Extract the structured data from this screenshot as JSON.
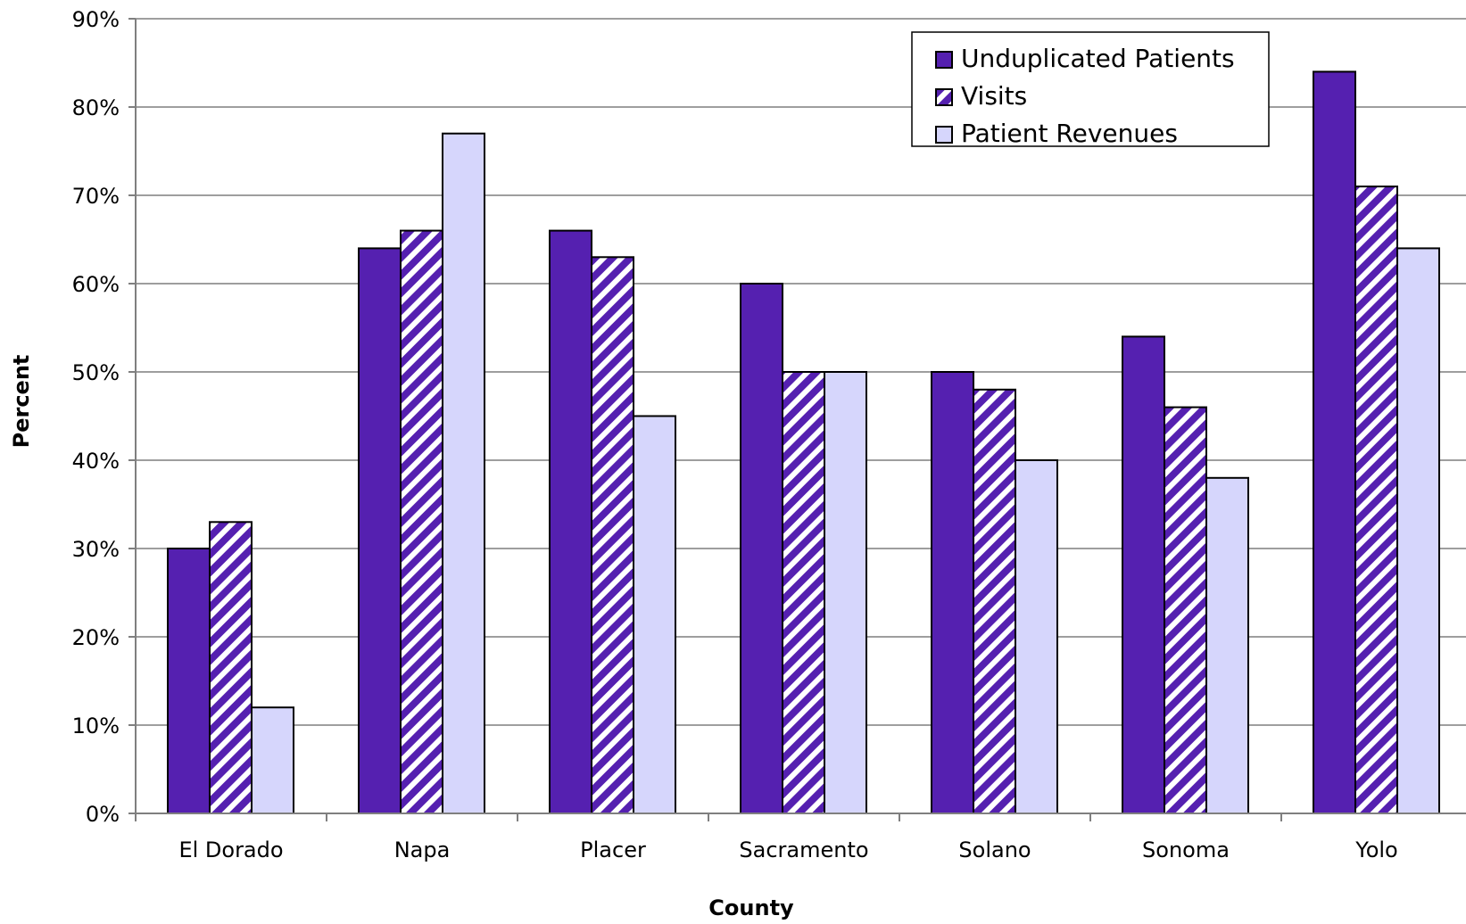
{
  "chart_data": {
    "type": "bar",
    "title": "",
    "xlabel": "County",
    "ylabel": "Percent",
    "categories": [
      "El Dorado",
      "Napa",
      "Placer",
      "Sacramento",
      "Solano",
      "Sonoma",
      "Yolo"
    ],
    "series": [
      {
        "name": "Unduplicated Patients",
        "values": [
          30,
          64,
          66,
          60,
          50,
          54,
          84
        ],
        "color": "#5520B0",
        "pattern": "solid"
      },
      {
        "name": "Visits",
        "values": [
          33,
          66,
          63,
          50,
          48,
          46,
          71
        ],
        "color": "#5520B0",
        "pattern": "diagonal-stripes"
      },
      {
        "name": "Patient Revenues",
        "values": [
          12,
          77,
          45,
          50,
          40,
          38,
          64
        ],
        "color": "#D6D6FC",
        "pattern": "solid"
      }
    ],
    "ylim": [
      0,
      90
    ],
    "yticks": [
      0,
      10,
      20,
      30,
      40,
      50,
      60,
      70,
      80,
      90
    ],
    "ytick_labels": [
      "0%",
      "10%",
      "20%",
      "30%",
      "40%",
      "50%",
      "60%",
      "70%",
      "80%",
      "90%"
    ],
    "grid": true,
    "legend_position": "top-right"
  }
}
